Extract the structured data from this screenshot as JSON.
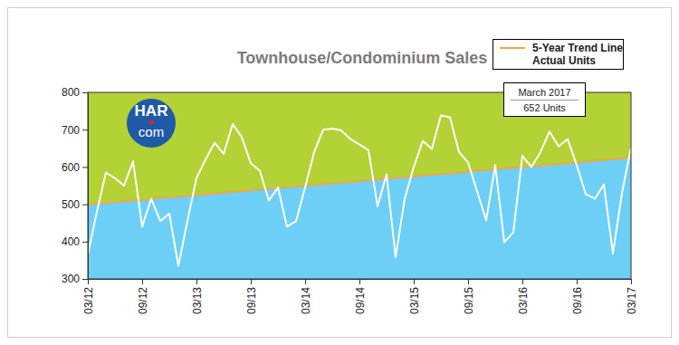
{
  "chart_data": {
    "type": "line",
    "title": "Townhouse/Condominium Sales",
    "logo": [
      "HAR",
      "com"
    ],
    "annotation": [
      "March 2017",
      "652 Units"
    ],
    "categories": [
      "03/12",
      null,
      null,
      null,
      null,
      null,
      "09/12",
      null,
      null,
      null,
      null,
      null,
      "03/13",
      null,
      null,
      null,
      null,
      null,
      "09/13",
      null,
      null,
      null,
      null,
      null,
      "03/14",
      null,
      null,
      null,
      null,
      null,
      "09/14",
      null,
      null,
      null,
      null,
      null,
      "03/15",
      null,
      null,
      null,
      null,
      null,
      "09/15",
      null,
      null,
      null,
      null,
      null,
      "03/16",
      null,
      null,
      null,
      null,
      null,
      "09/16",
      null,
      null,
      null,
      null,
      null,
      "03/17"
    ],
    "series": [
      {
        "name": "5-Year Trend Line",
        "color": "#f7a541",
        "values": [
          500,
          502,
          504,
          506,
          508,
          510,
          512,
          515,
          517,
          519,
          521,
          523,
          525,
          527,
          529,
          531,
          533,
          535,
          538,
          540,
          542,
          544,
          546,
          548,
          550,
          552,
          554,
          556,
          558,
          560,
          562,
          565,
          567,
          569,
          571,
          573,
          575,
          577,
          579,
          581,
          583,
          585,
          588,
          590,
          592,
          594,
          596,
          598,
          600,
          602,
          604,
          606,
          608,
          610,
          612,
          615,
          617,
          619,
          621,
          623,
          625
        ]
      },
      {
        "name": "Actual Units",
        "color": "#ffffff",
        "values": [
          365,
          480,
          585,
          570,
          550,
          615,
          440,
          515,
          455,
          475,
          335,
          455,
          570,
          620,
          665,
          635,
          715,
          680,
          610,
          590,
          510,
          545,
          440,
          455,
          545,
          640,
          700,
          703,
          698,
          675,
          660,
          645,
          495,
          580,
          358,
          515,
          600,
          670,
          648,
          738,
          733,
          640,
          612,
          535,
          457,
          605,
          398,
          425,
          630,
          600,
          640,
          695,
          655,
          675,
          605,
          527,
          515,
          553,
          368,
          530,
          652
        ]
      }
    ],
    "ylim": [
      300,
      800
    ],
    "yticks": [
      300,
      400,
      500,
      600,
      700,
      800
    ],
    "grid": false,
    "legend": "top-right"
  }
}
